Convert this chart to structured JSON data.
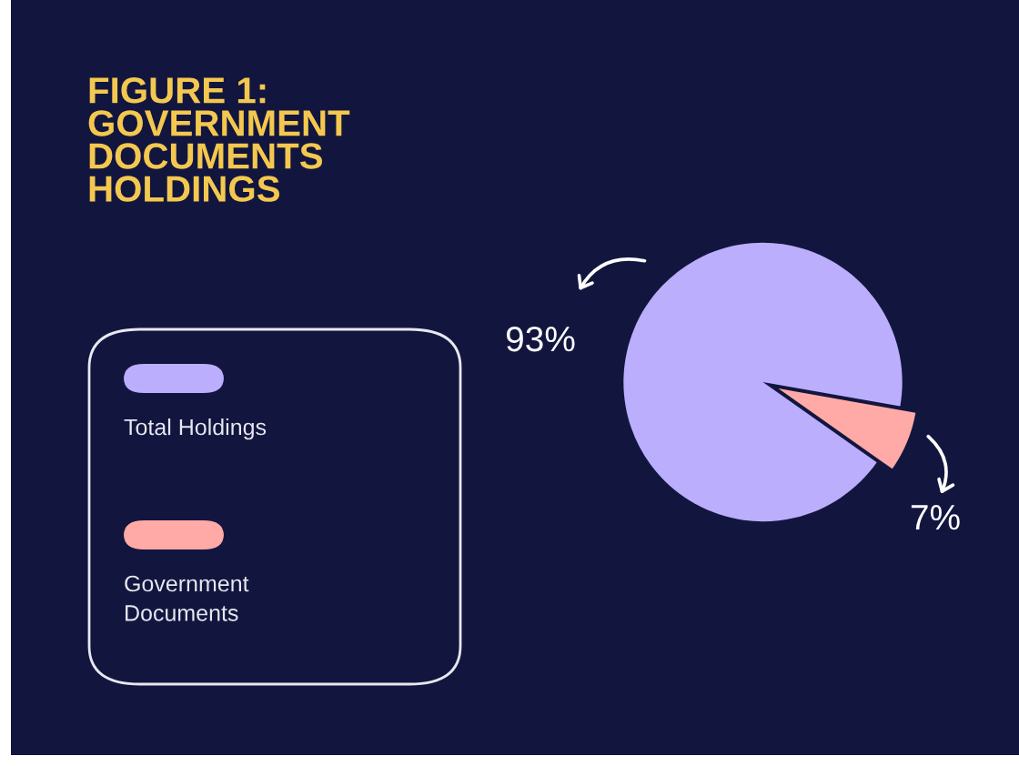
{
  "chart_data": {
    "type": "pie",
    "title": "FIGURE 1:\nGOVERNMENT\nDOCUMENTS\nHOLDINGS",
    "categories": [
      "Total Holdings",
      "Government\nDocuments"
    ],
    "values": [
      93,
      7
    ],
    "value_labels": [
      "93%",
      "7%"
    ],
    "colors": [
      "#bbaefc",
      "#ffaaa6"
    ],
    "legend": "left"
  }
}
